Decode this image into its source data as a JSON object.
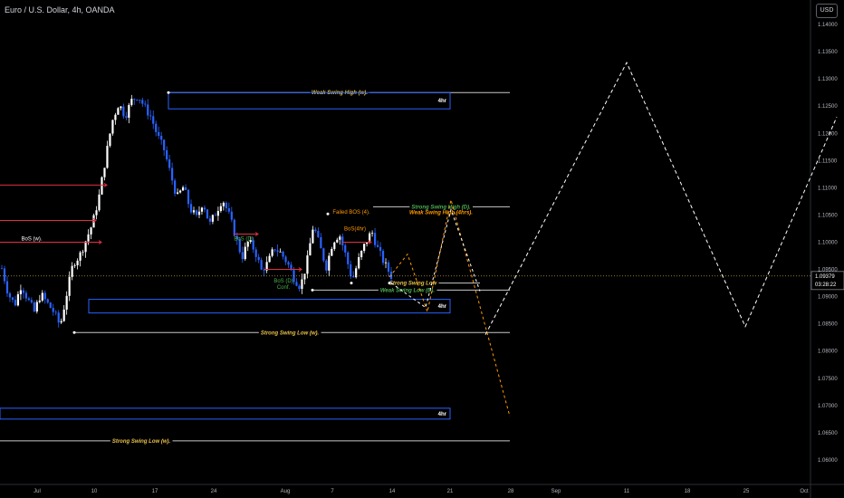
{
  "header": {
    "title": "Euro / U.S. Dollar, 4h, OANDA",
    "currency": "USD"
  },
  "price_tag": {
    "price": "1.09379",
    "countdown": "03:28:22"
  },
  "colors": {
    "background": "#000000",
    "bull_candle": "#ffffff",
    "bear_candle": "#2962ff",
    "zone_border": "#2962ff",
    "level_line": "#c8c8c8",
    "label_gold": "#e8c14a",
    "label_green": "#4caf50",
    "label_orange": "#ff9800",
    "label_red": "#e03040",
    "projection_white": "#ffffff",
    "projection_orange": "#ff9800",
    "axis_text": "#b2b5be"
  },
  "chart_data": {
    "type": "candlestick",
    "title": "Euro / U.S. Dollar, 4h, OANDA",
    "y_axis": {
      "ticks": [
        1.06,
        1.065,
        1.07,
        1.075,
        1.08,
        1.085,
        1.09,
        1.095,
        1.1,
        1.105,
        1.11,
        1.115,
        1.12,
        1.125,
        1.13,
        1.135,
        1.14
      ],
      "tick_labels": [
        "1.06000",
        "1.06500",
        "1.07000",
        "1.07500",
        "1.08000",
        "1.08500",
        "1.09000",
        "1.09500",
        "1.10000",
        "1.10500",
        "1.11000",
        "1.11500",
        "1.12000",
        "1.12500",
        "1.13000",
        "1.13500",
        "1.14000"
      ],
      "range": [
        1.0555,
        1.1445
      ]
    },
    "x_axis": {
      "tick_labels": [
        "Jul",
        "10",
        "17",
        "24",
        "Aug",
        "7",
        "14",
        "21",
        "28",
        "Sep",
        "11",
        "18",
        "25",
        "Oct"
      ]
    },
    "close_path": [
      1.0952,
      1.0905,
      1.0885,
      1.0922,
      1.0895,
      1.0872,
      1.0905,
      1.0888,
      1.0872,
      1.0846,
      1.0905,
      1.0962,
      1.0975,
      1.1005,
      1.1035,
      1.1085,
      1.1155,
      1.1222,
      1.1255,
      1.1232,
      1.126,
      1.127,
      1.1248,
      1.123,
      1.1195,
      1.117,
      1.1125,
      1.1082,
      1.1102,
      1.1062,
      1.1045,
      1.1075,
      1.1032,
      1.1055,
      1.108,
      1.105,
      1.1012,
      1.0972,
      1.1002,
      1.0985,
      1.0948,
      1.0962,
      1.099,
      1.098,
      1.0962,
      1.0935,
      1.0918,
      1.0962,
      1.1032,
      1.0992,
      1.0955,
      1.1002,
      1.1015,
      1.0975,
      1.093,
      1.0968,
      1.0998,
      1.102,
      1.0985,
      1.096,
      1.0938
    ],
    "zones": [
      {
        "label": "4hr",
        "top": 1.1275,
        "bottom": 1.1245
      },
      {
        "label": "4hr",
        "top": 1.0895,
        "bottom": 1.087
      },
      {
        "label": "4hr",
        "top": 1.0695,
        "bottom": 1.068
      }
    ],
    "levels": [
      {
        "label": "Weak Swing High (w).",
        "value": 1.1275,
        "color": "gold"
      },
      {
        "label": "Strong Swing High (D).",
        "value": 1.1065,
        "color": "green"
      },
      {
        "label": "Weak Swing High (4hrs).",
        "value": 1.1055,
        "color": "orange"
      },
      {
        "label": "Strong Swing Low",
        "value": 1.0925,
        "color": "gold"
      },
      {
        "label": "Weak Swing Low (D).",
        "value": 1.0912,
        "color": "green"
      },
      {
        "label": "Strong Swing Low (w).",
        "value": 1.0834,
        "color": "gold"
      },
      {
        "label": "Strong Swing Low (w).",
        "value": 1.0635,
        "color": "gold"
      }
    ],
    "annotations": [
      {
        "text": "BoS (w).",
        "color": "white"
      },
      {
        "text": "BoS (D)",
        "color": "green"
      },
      {
        "text": "BoS (D)",
        "color": "green"
      },
      {
        "text": "Conf.",
        "color": "green"
      },
      {
        "text": "Failed BOS (4).",
        "color": "orange"
      },
      {
        "text": "BoS(4hr)",
        "color": "orange"
      }
    ],
    "projection_white": [
      1.085,
      1.125,
      1.0968,
      1.1345,
      1.0845,
      1.1235
    ],
    "projection_orange": [
      1.0945,
      1.0875,
      1.0996,
      1.1055,
      1.069
    ]
  }
}
